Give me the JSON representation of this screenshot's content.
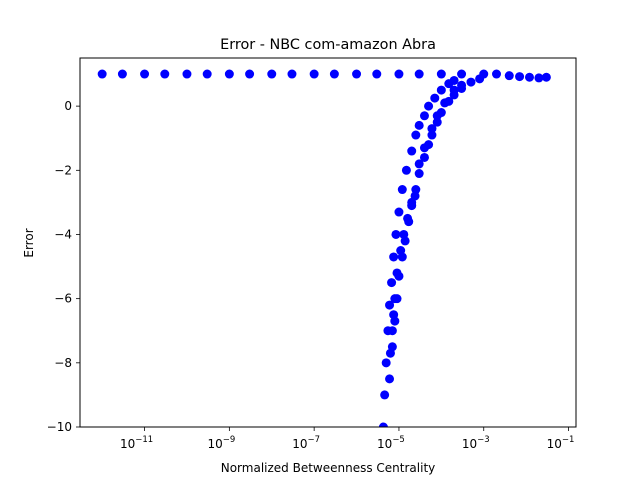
{
  "chart_data": {
    "type": "scatter",
    "title": "Error - NBC com-amazon Abra",
    "xlabel": "Normalized Betweenness Centrality",
    "ylabel": "Error",
    "x_scale": "log",
    "xlim": [
      3e-13,
      0.15
    ],
    "ylim": [
      -10,
      1.5
    ],
    "x_ticks": [
      {
        "base": "10",
        "exp": "−11",
        "value": 1e-11
      },
      {
        "base": "10",
        "exp": "−9",
        "value": 1e-09
      },
      {
        "base": "10",
        "exp": "−7",
        "value": 1e-07
      },
      {
        "base": "10",
        "exp": "−5",
        "value": 1e-05
      },
      {
        "base": "10",
        "exp": "−3",
        "value": 0.001
      },
      {
        "base": "10",
        "exp": "−1",
        "value": 0.1
      }
    ],
    "y_ticks": [
      {
        "label": "0",
        "value": 0
      },
      {
        "label": "−2",
        "value": -2
      },
      {
        "label": "−4",
        "value": -4
      },
      {
        "label": "−6",
        "value": -6
      },
      {
        "label": "−8",
        "value": -8
      },
      {
        "label": "−10",
        "value": -10
      }
    ],
    "grid": false,
    "legend": "none",
    "marker_color": "#0000ff",
    "series": [
      {
        "points": [
          [
            1e-12,
            1.0
          ],
          [
            3e-12,
            1.0
          ],
          [
            1e-11,
            1.0
          ],
          [
            3e-11,
            1.0
          ],
          [
            1e-10,
            1.0
          ],
          [
            3e-10,
            1.0
          ],
          [
            1e-09,
            1.0
          ],
          [
            3e-09,
            1.0
          ],
          [
            1e-08,
            1.0
          ],
          [
            3e-08,
            1.0
          ],
          [
            1e-07,
            1.0
          ],
          [
            3e-07,
            1.0
          ],
          [
            1e-06,
            1.0
          ],
          [
            3e-06,
            1.0
          ],
          [
            1e-05,
            1.0
          ],
          [
            3e-05,
            1.0
          ],
          [
            0.0001,
            1.0
          ],
          [
            0.0003,
            1.0
          ],
          [
            0.001,
            1.0
          ],
          [
            0.002,
            1.0
          ],
          [
            0.004,
            0.95
          ],
          [
            0.007,
            0.92
          ],
          [
            0.012,
            0.9
          ],
          [
            0.02,
            0.88
          ],
          [
            0.03,
            0.9
          ],
          [
            4.3e-06,
            -10.0
          ],
          [
            4.6e-06,
            -9.0
          ],
          [
            5e-06,
            -8.0
          ],
          [
            5.5e-06,
            -7.0
          ],
          [
            6e-06,
            -6.2
          ],
          [
            6.7e-06,
            -5.5
          ],
          [
            7.5e-06,
            -4.7
          ],
          [
            8.5e-06,
            -4.0
          ],
          [
            1e-05,
            -3.3
          ],
          [
            1.2e-05,
            -2.6
          ],
          [
            1.5e-05,
            -2.0
          ],
          [
            2e-05,
            -1.4
          ],
          [
            2.5e-05,
            -0.9
          ],
          [
            3e-05,
            -0.6
          ],
          [
            4e-05,
            -0.3
          ],
          [
            5e-05,
            0.0
          ],
          [
            7e-05,
            0.25
          ],
          [
            0.0001,
            0.5
          ],
          [
            0.00015,
            0.7
          ],
          [
            0.0002,
            0.8
          ],
          [
            7e-06,
            -7.5
          ],
          [
            8e-06,
            -6.7
          ],
          [
            9e-06,
            -6.0
          ],
          [
            1e-05,
            -5.3
          ],
          [
            1.2e-05,
            -4.7
          ],
          [
            1.4e-05,
            -4.2
          ],
          [
            1.7e-05,
            -3.6
          ],
          [
            2e-05,
            -3.1
          ],
          [
            2.5e-05,
            -2.6
          ],
          [
            3e-05,
            -2.1
          ],
          [
            4e-05,
            -1.6
          ],
          [
            5e-05,
            -1.2
          ],
          [
            6e-05,
            -0.9
          ],
          [
            8e-05,
            -0.5
          ],
          [
            0.0001,
            -0.2
          ],
          [
            0.00015,
            0.15
          ],
          [
            0.0002,
            0.35
          ],
          [
            0.0003,
            0.55
          ],
          [
            0.0005,
            0.75
          ],
          [
            0.0008,
            0.85
          ],
          [
            6e-06,
            -8.5
          ],
          [
            6.3e-06,
            -7.7
          ],
          [
            7e-06,
            -7.0
          ],
          [
            7.5e-06,
            -6.5
          ],
          [
            8e-06,
            -6.0
          ],
          [
            9e-06,
            -5.2
          ],
          [
            1.1e-05,
            -4.5
          ],
          [
            1.3e-05,
            -4.0
          ],
          [
            1.6e-05,
            -3.5
          ],
          [
            2e-05,
            -3.0
          ],
          [
            2.4e-05,
            -2.8
          ],
          [
            3e-05,
            -1.8
          ],
          [
            4e-05,
            -1.3
          ],
          [
            6e-05,
            -0.7
          ],
          [
            8e-05,
            -0.3
          ],
          [
            0.00012,
            0.1
          ],
          [
            0.0002,
            0.5
          ],
          [
            0.0003,
            0.65
          ]
        ]
      }
    ]
  }
}
